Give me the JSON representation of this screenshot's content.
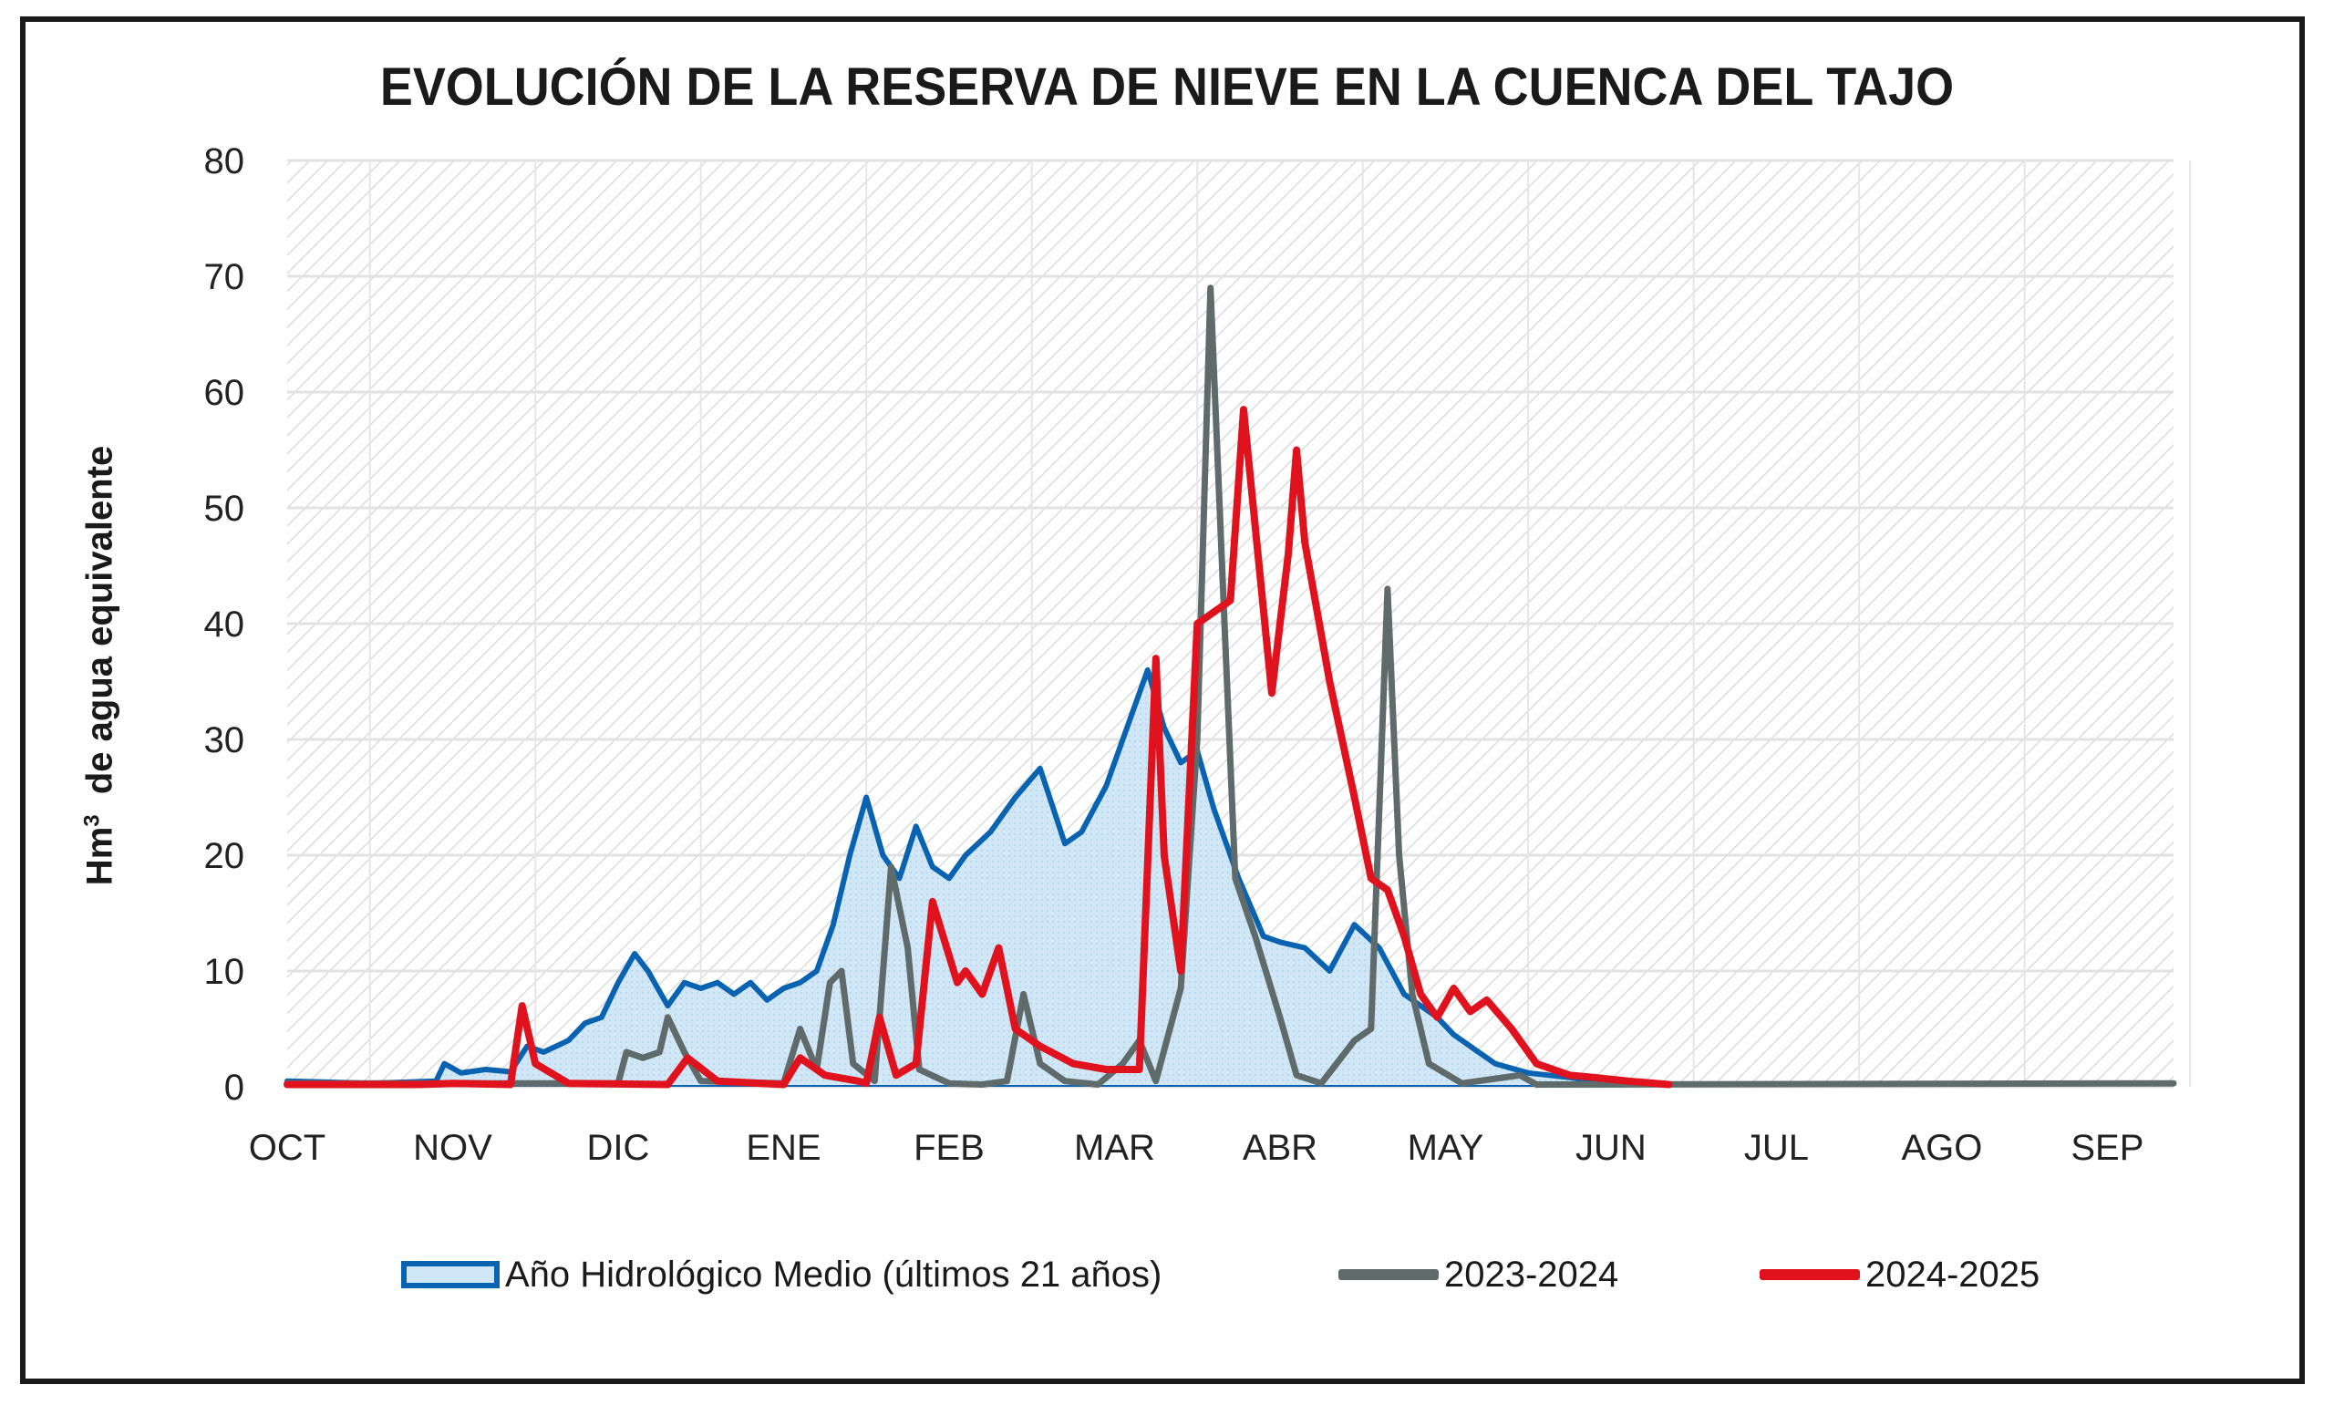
{
  "chart_data": {
    "type": "line",
    "title": "EVOLUCIÓN DE LA RESERVA DE NIEVE EN LA CUENCA DEL TAJO",
    "ylabel_main": "Hm",
    "ylabel_sup": "3",
    "ylabel_rest": "  de agua equivalente",
    "xlabel": "",
    "ylim": [
      0,
      80
    ],
    "yticks": [
      "0",
      "10",
      "20",
      "30",
      "40",
      "50",
      "60",
      "70",
      "80"
    ],
    "xlim_months": [
      0,
      11.4
    ],
    "categories": [
      "OCT",
      "NOV",
      "DIC",
      "ENE",
      "FEB",
      "MAR",
      "ABR",
      "MAY",
      "JUN",
      "JUL",
      "AGO",
      "SEP"
    ],
    "grid": true,
    "legend_position": "bottom",
    "x_unit": "months since 1 October",
    "series": [
      {
        "name": "Año Hidrológico Medio (últimos 21 años)",
        "kind": "area",
        "color": "#0a63b0",
        "fill": "#cfe6f6",
        "points": [
          [
            0,
            0.5
          ],
          [
            0.5,
            0.3
          ],
          [
            0.9,
            0.5
          ],
          [
            0.95,
            2
          ],
          [
            1.05,
            1.2
          ],
          [
            1.2,
            1.5
          ],
          [
            1.35,
            1.3
          ],
          [
            1.45,
            3.5
          ],
          [
            1.55,
            3
          ],
          [
            1.7,
            4
          ],
          [
            1.8,
            5.5
          ],
          [
            1.9,
            6
          ],
          [
            2.0,
            9
          ],
          [
            2.1,
            11.5
          ],
          [
            2.18,
            10
          ],
          [
            2.3,
            7
          ],
          [
            2.4,
            9
          ],
          [
            2.5,
            8.5
          ],
          [
            2.6,
            9
          ],
          [
            2.7,
            8
          ],
          [
            2.8,
            9
          ],
          [
            2.9,
            7.5
          ],
          [
            3.0,
            8.5
          ],
          [
            3.1,
            9
          ],
          [
            3.2,
            10
          ],
          [
            3.3,
            14
          ],
          [
            3.4,
            20
          ],
          [
            3.5,
            25
          ],
          [
            3.6,
            20
          ],
          [
            3.7,
            18
          ],
          [
            3.8,
            22.5
          ],
          [
            3.9,
            19
          ],
          [
            4.0,
            18
          ],
          [
            4.1,
            20
          ],
          [
            4.25,
            22
          ],
          [
            4.4,
            25
          ],
          [
            4.55,
            27.5
          ],
          [
            4.7,
            21
          ],
          [
            4.8,
            22
          ],
          [
            4.95,
            26
          ],
          [
            5.1,
            32
          ],
          [
            5.2,
            36
          ],
          [
            5.3,
            31
          ],
          [
            5.4,
            28
          ],
          [
            5.5,
            29
          ],
          [
            5.6,
            24
          ],
          [
            5.75,
            18
          ],
          [
            5.9,
            13
          ],
          [
            6.0,
            12.5
          ],
          [
            6.15,
            12
          ],
          [
            6.3,
            10
          ],
          [
            6.45,
            14
          ],
          [
            6.6,
            12
          ],
          [
            6.75,
            8
          ],
          [
            6.95,
            6
          ],
          [
            7.05,
            4.5
          ],
          [
            7.2,
            3
          ],
          [
            7.3,
            2
          ],
          [
            7.5,
            1.2
          ],
          [
            7.75,
            0.8
          ],
          [
            7.9,
            0.5
          ],
          [
            8.1,
            0.2
          ]
        ]
      },
      {
        "name": "2023-2024",
        "kind": "line",
        "color": "#5f6a6a",
        "points": [
          [
            0,
            0.3
          ],
          [
            2.0,
            0.3
          ],
          [
            2.05,
            3
          ],
          [
            2.15,
            2.5
          ],
          [
            2.25,
            3
          ],
          [
            2.3,
            6
          ],
          [
            2.4,
            3
          ],
          [
            2.5,
            0.5
          ],
          [
            3.0,
            0.3
          ],
          [
            3.1,
            5
          ],
          [
            3.2,
            1.5
          ],
          [
            3.28,
            9
          ],
          [
            3.35,
            10
          ],
          [
            3.42,
            2
          ],
          [
            3.55,
            0.5
          ],
          [
            3.65,
            19
          ],
          [
            3.75,
            12
          ],
          [
            3.82,
            1.5
          ],
          [
            4.0,
            0.3
          ],
          [
            4.2,
            0.2
          ],
          [
            4.35,
            0.5
          ],
          [
            4.45,
            8
          ],
          [
            4.55,
            2
          ],
          [
            4.7,
            0.5
          ],
          [
            4.9,
            0.2
          ],
          [
            5.05,
            2
          ],
          [
            5.15,
            4
          ],
          [
            5.25,
            0.5
          ],
          [
            5.4,
            8.5
          ],
          [
            5.5,
            30
          ],
          [
            5.58,
            69
          ],
          [
            5.65,
            45
          ],
          [
            5.73,
            18
          ],
          [
            5.85,
            13
          ],
          [
            6.0,
            6
          ],
          [
            6.1,
            1
          ],
          [
            6.25,
            0.3
          ],
          [
            6.45,
            4
          ],
          [
            6.55,
            5
          ],
          [
            6.65,
            43
          ],
          [
            6.72,
            20
          ],
          [
            6.8,
            8
          ],
          [
            6.9,
            2
          ],
          [
            7.1,
            0.3
          ],
          [
            7.45,
            1
          ],
          [
            7.55,
            0.2
          ],
          [
            11.4,
            0.3
          ]
        ]
      },
      {
        "name": "2024-2025",
        "kind": "line",
        "color": "#e0121e",
        "points": [
          [
            0,
            0.2
          ],
          [
            0.8,
            0.2
          ],
          [
            1.0,
            0.3
          ],
          [
            1.35,
            0.2
          ],
          [
            1.42,
            7
          ],
          [
            1.5,
            2
          ],
          [
            1.7,
            0.3
          ],
          [
            2.3,
            0.2
          ],
          [
            2.42,
            2.5
          ],
          [
            2.6,
            0.5
          ],
          [
            3.0,
            0.2
          ],
          [
            3.1,
            2.5
          ],
          [
            3.25,
            1
          ],
          [
            3.45,
            0.5
          ],
          [
            3.5,
            0.3
          ],
          [
            3.58,
            6
          ],
          [
            3.68,
            1
          ],
          [
            3.8,
            2
          ],
          [
            3.9,
            16
          ],
          [
            4.05,
            9
          ],
          [
            4.1,
            10
          ],
          [
            4.2,
            8
          ],
          [
            4.3,
            12
          ],
          [
            4.4,
            5
          ],
          [
            4.55,
            3.5
          ],
          [
            4.75,
            2
          ],
          [
            4.95,
            1.5
          ],
          [
            5.15,
            1.5
          ],
          [
            5.25,
            37
          ],
          [
            5.3,
            20
          ],
          [
            5.4,
            10
          ],
          [
            5.5,
            40
          ],
          [
            5.6,
            41
          ],
          [
            5.7,
            42
          ],
          [
            5.78,
            58.5
          ],
          [
            5.95,
            34
          ],
          [
            6.05,
            46
          ],
          [
            6.1,
            55
          ],
          [
            6.15,
            47
          ],
          [
            6.3,
            35
          ],
          [
            6.45,
            25
          ],
          [
            6.55,
            18
          ],
          [
            6.65,
            17
          ],
          [
            6.75,
            13
          ],
          [
            6.85,
            8
          ],
          [
            6.95,
            6
          ],
          [
            7.05,
            8.5
          ],
          [
            7.15,
            6.5
          ],
          [
            7.25,
            7.5
          ],
          [
            7.4,
            5
          ],
          [
            7.55,
            2
          ],
          [
            7.75,
            1
          ],
          [
            7.9,
            0.8
          ],
          [
            8.1,
            0.5
          ],
          [
            8.35,
            0.2
          ]
        ]
      }
    ]
  }
}
